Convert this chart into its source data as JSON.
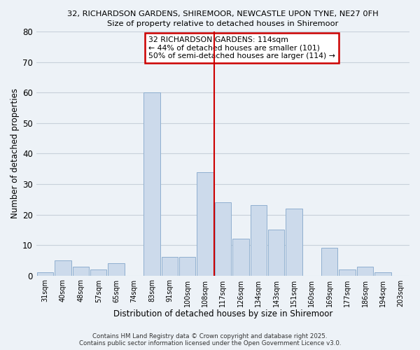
{
  "title_line1": "32, RICHARDSON GARDENS, SHIREMOOR, NEWCASTLE UPON TYNE, NE27 0FH",
  "title_line2": "Size of property relative to detached houses in Shiremoor",
  "xlabel": "Distribution of detached houses by size in Shiremoor",
  "ylabel": "Number of detached properties",
  "bar_labels": [
    "31sqm",
    "40sqm",
    "48sqm",
    "57sqm",
    "65sqm",
    "74sqm",
    "83sqm",
    "91sqm",
    "100sqm",
    "108sqm",
    "117sqm",
    "126sqm",
    "134sqm",
    "143sqm",
    "151sqm",
    "160sqm",
    "169sqm",
    "177sqm",
    "186sqm",
    "194sqm",
    "203sqm"
  ],
  "bar_values": [
    1,
    5,
    3,
    2,
    4,
    0,
    60,
    6,
    6,
    34,
    24,
    12,
    23,
    15,
    22,
    0,
    9,
    2,
    3,
    1,
    0
  ],
  "bar_color": "#ccdaeb",
  "bar_edge_color": "#8fafd0",
  "grid_color": "#c8d0da",
  "background_color": "#edf2f7",
  "vline_x": 9.5,
  "vline_color": "#cc0000",
  "annotation_title": "32 RICHARDSON GARDENS: 114sqm",
  "annotation_line2": "← 44% of detached houses are smaller (101)",
  "annotation_line3": "50% of semi-detached houses are larger (114) →",
  "annotation_box_color": "#ffffff",
  "annotation_border_color": "#cc0000",
  "footnote1": "Contains HM Land Registry data © Crown copyright and database right 2025.",
  "footnote2": "Contains public sector information licensed under the Open Government Licence v3.0.",
  "ylim": [
    0,
    80
  ],
  "yticks": [
    0,
    10,
    20,
    30,
    40,
    50,
    60,
    70,
    80
  ]
}
